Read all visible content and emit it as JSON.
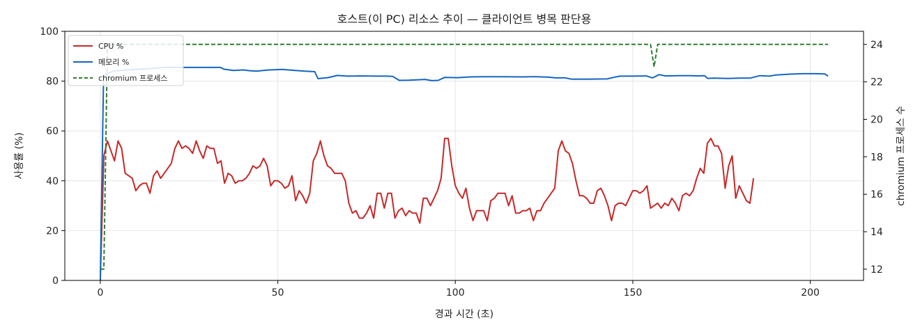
{
  "chart_data": {
    "type": "line",
    "title": "호스트(이 PC) 리소스 추이 — 클라이언트 병목 판단용",
    "xlabel": "경과 시간 (초)",
    "ylabel": "사용률 (%)",
    "y2label": "chromium 프로세스 수",
    "xlim": [
      -10,
      215
    ],
    "ylim": [
      0,
      100
    ],
    "y2lim": [
      11.4,
      24.7
    ],
    "xticks": [
      0,
      50,
      100,
      150,
      200
    ],
    "yticks": [
      0,
      20,
      40,
      60,
      80,
      100
    ],
    "y2ticks": [
      12,
      14,
      16,
      18,
      20,
      22,
      24
    ],
    "grid": true,
    "legend_position": "top-left",
    "series": [
      {
        "name": "CPU %",
        "axis": "left",
        "color": "#c62828",
        "style": "solid",
        "points": [
          [
            0,
            0
          ],
          [
            1,
            50
          ],
          [
            2,
            56
          ],
          [
            3,
            52
          ],
          [
            4,
            48
          ],
          [
            5,
            56
          ],
          [
            6,
            53
          ],
          [
            7,
            43
          ],
          [
            8,
            42
          ],
          [
            9,
            41
          ],
          [
            10,
            36
          ],
          [
            11,
            38
          ],
          [
            12,
            39
          ],
          [
            13,
            39
          ],
          [
            14,
            35
          ],
          [
            15,
            42
          ],
          [
            16,
            44
          ],
          [
            17,
            41
          ],
          [
            18,
            43
          ],
          [
            19,
            45
          ],
          [
            20,
            47
          ],
          [
            21,
            53
          ],
          [
            22,
            56
          ],
          [
            23,
            53
          ],
          [
            24,
            54
          ],
          [
            25,
            53
          ],
          [
            26,
            51
          ],
          [
            27,
            56
          ],
          [
            28,
            52
          ],
          [
            29,
            49
          ],
          [
            30,
            54
          ],
          [
            31,
            53
          ],
          [
            32,
            53
          ],
          [
            33,
            47
          ],
          [
            34,
            48
          ],
          [
            35,
            39
          ],
          [
            36,
            43
          ],
          [
            37,
            42
          ],
          [
            38,
            39
          ],
          [
            39,
            40
          ],
          [
            40,
            40
          ],
          [
            41,
            41
          ],
          [
            42,
            43
          ],
          [
            43,
            46
          ],
          [
            44,
            45
          ],
          [
            45,
            46
          ],
          [
            46,
            49
          ],
          [
            47,
            46
          ],
          [
            48,
            38
          ],
          [
            49,
            40
          ],
          [
            50,
            40
          ],
          [
            51,
            39
          ],
          [
            52,
            37
          ],
          [
            53,
            38
          ],
          [
            54,
            42
          ],
          [
            55,
            32
          ],
          [
            56,
            36
          ],
          [
            57,
            34
          ],
          [
            58,
            31
          ],
          [
            59,
            35
          ],
          [
            60,
            48
          ],
          [
            61,
            51
          ],
          [
            62,
            56
          ],
          [
            63,
            50
          ],
          [
            64,
            46
          ],
          [
            65,
            45
          ],
          [
            66,
            43
          ],
          [
            67,
            43
          ],
          [
            68,
            43
          ],
          [
            69,
            40
          ],
          [
            70,
            31
          ],
          [
            71,
            27
          ],
          [
            72,
            28
          ],
          [
            73,
            25
          ],
          [
            74,
            25
          ],
          [
            75,
            27
          ],
          [
            76,
            30
          ],
          [
            77,
            25
          ],
          [
            78,
            35
          ],
          [
            79,
            35
          ],
          [
            80,
            29
          ],
          [
            81,
            35
          ],
          [
            82,
            35
          ],
          [
            83,
            25
          ],
          [
            84,
            28
          ],
          [
            85,
            29
          ],
          [
            86,
            26
          ],
          [
            87,
            28
          ],
          [
            88,
            27
          ],
          [
            89,
            27
          ],
          [
            90,
            23
          ],
          [
            91,
            33
          ],
          [
            92,
            33
          ],
          [
            93,
            30
          ],
          [
            94,
            33
          ],
          [
            95,
            36
          ],
          [
            96,
            41
          ],
          [
            97,
            57
          ],
          [
            98,
            57
          ],
          [
            99,
            46
          ],
          [
            100,
            38
          ],
          [
            101,
            35
          ],
          [
            102,
            33
          ],
          [
            103,
            37
          ],
          [
            104,
            29
          ],
          [
            105,
            24
          ],
          [
            106,
            28
          ],
          [
            107,
            28
          ],
          [
            108,
            28
          ],
          [
            109,
            24
          ],
          [
            110,
            32
          ],
          [
            111,
            33
          ],
          [
            112,
            35
          ],
          [
            113,
            35
          ],
          [
            114,
            35
          ],
          [
            115,
            30
          ],
          [
            116,
            34
          ],
          [
            117,
            27
          ],
          [
            118,
            27
          ],
          [
            119,
            28
          ],
          [
            120,
            28
          ],
          [
            121,
            29
          ],
          [
            122,
            24
          ],
          [
            123,
            28
          ],
          [
            124,
            28
          ],
          [
            125,
            31
          ],
          [
            126,
            33
          ],
          [
            127,
            35
          ],
          [
            128,
            37
          ],
          [
            129,
            52
          ],
          [
            130,
            56
          ],
          [
            131,
            52
          ],
          [
            132,
            51
          ],
          [
            133,
            47
          ],
          [
            134,
            40
          ],
          [
            135,
            34
          ],
          [
            136,
            34
          ],
          [
            137,
            33
          ],
          [
            138,
            31
          ],
          [
            139,
            31
          ],
          [
            140,
            36
          ],
          [
            141,
            37
          ],
          [
            142,
            34
          ],
          [
            143,
            30
          ],
          [
            144,
            24
          ],
          [
            145,
            30
          ],
          [
            146,
            31
          ],
          [
            147,
            31
          ],
          [
            148,
            30
          ],
          [
            149,
            33
          ],
          [
            150,
            36
          ],
          [
            151,
            36
          ],
          [
            152,
            35
          ],
          [
            153,
            36
          ],
          [
            154,
            38
          ],
          [
            155,
            29
          ],
          [
            156,
            30
          ],
          [
            157,
            31
          ],
          [
            158,
            29
          ],
          [
            159,
            31
          ],
          [
            160,
            30
          ],
          [
            161,
            33
          ],
          [
            162,
            31
          ],
          [
            163,
            28
          ],
          [
            164,
            34
          ],
          [
            165,
            35
          ],
          [
            166,
            34
          ],
          [
            167,
            36
          ],
          [
            168,
            41
          ],
          [
            169,
            45
          ],
          [
            170,
            43
          ],
          [
            171,
            55
          ],
          [
            172,
            57
          ],
          [
            173,
            54
          ],
          [
            174,
            54
          ],
          [
            175,
            51
          ],
          [
            176,
            37
          ],
          [
            177,
            46
          ],
          [
            178,
            50
          ],
          [
            179,
            33
          ],
          [
            180,
            38
          ],
          [
            181,
            35
          ],
          [
            182,
            32
          ],
          [
            183,
            31
          ],
          [
            184,
            41
          ]
        ]
      },
      {
        "name": "메모리 %",
        "axis": "left",
        "color": "#1565c0",
        "style": "solid",
        "points": [
          [
            0,
            0
          ],
          [
            1,
            82
          ],
          [
            2,
            83
          ],
          [
            4,
            84
          ],
          [
            8,
            84.5
          ],
          [
            15,
            85
          ],
          [
            20,
            85.5
          ],
          [
            30,
            85.5
          ],
          [
            37,
            85.5
          ],
          [
            38,
            84.8
          ],
          [
            41,
            84.3
          ],
          [
            44,
            84.5
          ],
          [
            46,
            84.2
          ],
          [
            48,
            84
          ],
          [
            52,
            84.5
          ],
          [
            56,
            84.7
          ],
          [
            60,
            84.3
          ],
          [
            63,
            84
          ],
          [
            66,
            83.8
          ],
          [
            67,
            81
          ],
          [
            70,
            81.4
          ],
          [
            73,
            82.3
          ],
          [
            76,
            82
          ],
          [
            80,
            82.1
          ],
          [
            85,
            82
          ],
          [
            88,
            82
          ],
          [
            90,
            81.9
          ],
          [
            92,
            80.3
          ],
          [
            95,
            80.4
          ],
          [
            100,
            80.7
          ],
          [
            102,
            80.2
          ],
          [
            104,
            80.3
          ],
          [
            106,
            81.5
          ],
          [
            110,
            81.4
          ],
          [
            114,
            81.7
          ],
          [
            118,
            81.8
          ],
          [
            124,
            81.8
          ],
          [
            130,
            81.7
          ],
          [
            134,
            81.8
          ],
          [
            138,
            81.6
          ],
          [
            140,
            81.3
          ],
          [
            143,
            81.3
          ],
          [
            145,
            80.8
          ],
          [
            150,
            80.8
          ],
          [
            156,
            80.9
          ],
          [
            158,
            81.5
          ],
          [
            160,
            82
          ],
          [
            164,
            82
          ],
          [
            168,
            82.1
          ],
          [
            170,
            81.3
          ],
          [
            172,
            82.6
          ],
          [
            174,
            82.1
          ],
          [
            178,
            82.2
          ],
          [
            182,
            82.2
          ],
          [
            184,
            82.1
          ],
          [
            186,
            82.2
          ],
          [
            187,
            81.1
          ],
          [
            189,
            81.2
          ],
          [
            193,
            81.1
          ],
          [
            197,
            81.2
          ],
          [
            200,
            81.2
          ],
          [
            203,
            82.2
          ],
          [
            206,
            82
          ],
          [
            208,
            82.5
          ],
          [
            212,
            82.8
          ],
          [
            216,
            83
          ],
          [
            220,
            83
          ],
          [
            223,
            82.9
          ],
          [
            224,
            82
          ]
        ],
        "x_scale_note": ""
      },
      {
        "name": "chromium 프로세스",
        "axis": "right",
        "color": "#2e7d32",
        "style": "dashed",
        "points": [
          [
            0,
            12
          ],
          [
            1,
            12
          ],
          [
            2,
            24
          ],
          [
            155,
            24
          ],
          [
            156,
            22.8
          ],
          [
            157,
            24
          ],
          [
            205,
            24
          ]
        ]
      }
    ]
  }
}
